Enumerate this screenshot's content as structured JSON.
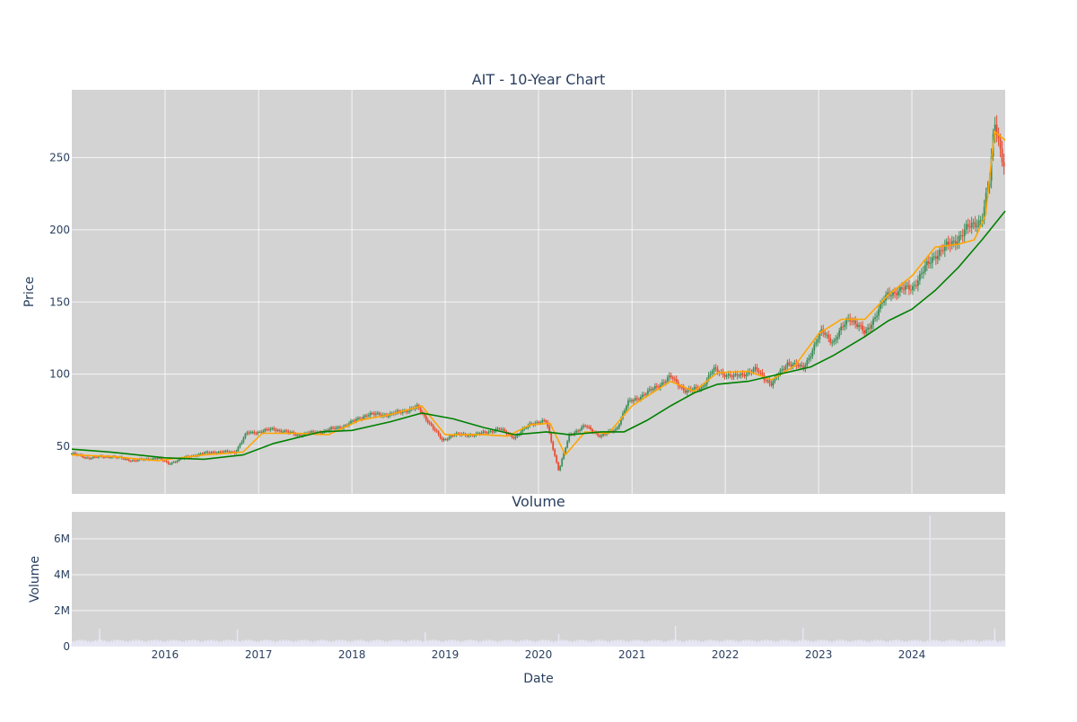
{
  "chart_data": [
    {
      "type": "candlestick",
      "title": "AIT - 10-Year Chart",
      "ylabel": "Price",
      "ylim": [
        17,
        297
      ],
      "x_range": [
        "2015-01-01",
        "2024-12-31"
      ],
      "y_ticks": [
        50,
        100,
        150,
        200,
        250
      ],
      "grid": true,
      "background": "#d3d3d3",
      "colors": {
        "up": "#3d8f5a",
        "down": "#ea4b2f",
        "ma_short": "#ffa500",
        "ma_long": "#008000"
      },
      "series": [
        {
          "kind": "price_close",
          "x": [
            "2015-01-01",
            "2015-03-01",
            "2015-06-01",
            "2015-09-01",
            "2015-12-01",
            "2016-01-15",
            "2016-04-01",
            "2016-07-01",
            "2016-10-01",
            "2016-11-15",
            "2017-01-01",
            "2017-03-01",
            "2017-06-01",
            "2017-09-01",
            "2017-12-01",
            "2018-03-01",
            "2018-06-01",
            "2018-09-15",
            "2018-11-01",
            "2018-12-20",
            "2019-02-01",
            "2019-05-01",
            "2019-08-01",
            "2019-10-01",
            "2019-12-01",
            "2020-02-01",
            "2020-03-20",
            "2020-05-01",
            "2020-07-01",
            "2020-09-01",
            "2020-11-01",
            "2020-12-15",
            "2021-03-01",
            "2021-06-01",
            "2021-08-01",
            "2021-10-01",
            "2021-11-15",
            "2022-02-01",
            "2022-05-01",
            "2022-07-01",
            "2022-09-01",
            "2022-11-01",
            "2023-01-15",
            "2023-03-01",
            "2023-05-01",
            "2023-07-01",
            "2023-10-01",
            "2024-01-01",
            "2024-04-01",
            "2024-06-01",
            "2024-08-01",
            "2024-10-01",
            "2024-11-01",
            "2024-11-20",
            "2024-12-31"
          ],
          "values": [
            45,
            42,
            43,
            40,
            42,
            38,
            43,
            46,
            46,
            59,
            60,
            62,
            58,
            60,
            64,
            72,
            72,
            77,
            66,
            54,
            58,
            58,
            62,
            56,
            66,
            67,
            33,
            58,
            64,
            57,
            62,
            80,
            87,
            98,
            88,
            91,
            103,
            98,
            103,
            93,
            108,
            104,
            130,
            122,
            140,
            128,
            156,
            160,
            183,
            190,
            200,
            208,
            235,
            276,
            241
          ]
        },
        {
          "kind": "ma_short",
          "name": "",
          "x": [
            "2015-01-01",
            "2015-06-01",
            "2015-12-01",
            "2016-06-01",
            "2016-11-01",
            "2017-01-15",
            "2017-06-01",
            "2017-10-01",
            "2018-02-01",
            "2018-06-01",
            "2018-10-01",
            "2019-01-01",
            "2019-06-01",
            "2019-09-01",
            "2019-12-01",
            "2020-02-15",
            "2020-04-15",
            "2020-07-01",
            "2020-10-01",
            "2021-01-01",
            "2021-06-01",
            "2021-09-01",
            "2021-12-01",
            "2022-04-01",
            "2022-07-01",
            "2022-10-01",
            "2023-01-01",
            "2023-04-01",
            "2023-07-01",
            "2023-10-01",
            "2024-01-01",
            "2024-04-01",
            "2024-07-01",
            "2024-09-01",
            "2024-10-15",
            "2024-11-20",
            "2024-12-31"
          ],
          "values": [
            44,
            43,
            40,
            44,
            46,
            59,
            59,
            58,
            68,
            72,
            78,
            58,
            58,
            57,
            65,
            66,
            44,
            60,
            59,
            78,
            95,
            88,
            101,
            102,
            96,
            106,
            128,
            138,
            138,
            155,
            168,
            188,
            190,
            193,
            210,
            268,
            262
          ]
        },
        {
          "kind": "ma_long",
          "name": "",
          "x": [
            "2015-01-01",
            "2015-06-01",
            "2016-01-01",
            "2016-06-01",
            "2016-11-01",
            "2017-03-01",
            "2017-09-01",
            "2018-01-01",
            "2018-06-01",
            "2018-10-01",
            "2019-02-01",
            "2019-06-01",
            "2019-10-01",
            "2020-02-01",
            "2020-05-01",
            "2020-09-01",
            "2020-12-01",
            "2021-03-01",
            "2021-06-01",
            "2021-09-01",
            "2021-12-01",
            "2022-04-01",
            "2022-08-01",
            "2022-12-01",
            "2023-03-01",
            "2023-07-01",
            "2023-10-01",
            "2024-01-01",
            "2024-04-01",
            "2024-07-01",
            "2024-10-01",
            "2024-12-31"
          ],
          "values": [
            48,
            46,
            42,
            41,
            44,
            52,
            60,
            61,
            67,
            73,
            69,
            63,
            58,
            60,
            58,
            60,
            60,
            68,
            78,
            87,
            93,
            95,
            100,
            105,
            113,
            126,
            137,
            145,
            158,
            174,
            193,
            213
          ]
        }
      ]
    },
    {
      "type": "bar",
      "title": "Volume",
      "xlabel": "Date",
      "ylabel": "Volume",
      "ylim": [
        0,
        7500000
      ],
      "y_ticks": [
        0,
        2000000,
        4000000,
        6000000
      ],
      "y_tick_labels": [
        "0",
        "2M",
        "4M",
        "6M"
      ],
      "x_ticks": [
        "2016",
        "2017",
        "2018",
        "2019",
        "2020",
        "2021",
        "2022",
        "2023",
        "2024"
      ],
      "grid": true,
      "background": "#d3d3d3",
      "bar_color": "#e6e6f5",
      "baseline_volume": 250000,
      "spikes": [
        {
          "date": "2015-04-20",
          "volume": 1000000
        },
        {
          "date": "2016-10-10",
          "volume": 950000
        },
        {
          "date": "2018-10-15",
          "volume": 800000
        },
        {
          "date": "2020-03-20",
          "volume": 700000
        },
        {
          "date": "2021-06-20",
          "volume": 1150000
        },
        {
          "date": "2022-11-01",
          "volume": 1050000
        },
        {
          "date": "2024-03-12",
          "volume": 7300000
        },
        {
          "date": "2024-11-20",
          "volume": 1000000
        }
      ]
    }
  ]
}
